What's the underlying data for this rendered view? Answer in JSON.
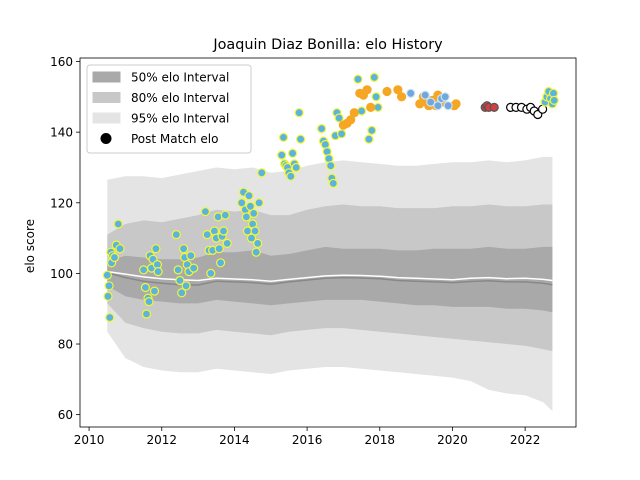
{
  "chart_data": {
    "type": "scatter",
    "title": "Joaquin Diaz Bonilla: elo History",
    "xlabel": "",
    "ylabel": "elo score",
    "xlim": [
      2009.75,
      2023.4
    ],
    "ylim": [
      56.5,
      161
    ],
    "xticks": [
      2010,
      2012,
      2014,
      2016,
      2018,
      2020,
      2022
    ],
    "yticks": [
      60,
      80,
      100,
      120,
      140,
      160
    ],
    "grid": false,
    "legend_position": "top-left",
    "legend": [
      {
        "label": "50% elo Interval",
        "kind": "band50"
      },
      {
        "label": "80% elo Interval",
        "kind": "band80"
      },
      {
        "label": "95% elo Interval",
        "kind": "band95"
      },
      {
        "label": "Post Match elo",
        "kind": "marker"
      }
    ],
    "colors": {
      "band50": "#a9a9a9",
      "band80": "#c8c8c8",
      "band95": "#e4e4e4",
      "mean_line": "#ffffff",
      "median_line": "#888888",
      "stage1_fill": "#5ab4e0",
      "stage1_edge": "#f5f533",
      "stage2_fill": "#f5a623",
      "stage2_edge": "#f5a623",
      "stage3_fill": "#6fa8dc",
      "stage3_edge": "#cfe2f3",
      "stage4_fill": "#d04040",
      "stage4_edge": "#555555",
      "stage5_fill": "#ffffff",
      "stage5_edge": "#000000",
      "stage6_fill": "#5ab4e0",
      "stage6_edge": "#f5f533"
    },
    "bands": {
      "x": [
        2010.5,
        2011.0,
        2011.5,
        2012.0,
        2012.5,
        2013.0,
        2013.5,
        2014.0,
        2014.5,
        2015.0,
        2015.5,
        2016.0,
        2016.5,
        2017.0,
        2017.5,
        2018.0,
        2018.5,
        2019.0,
        2019.5,
        2020.0,
        2020.5,
        2021.0,
        2021.5,
        2022.0,
        2022.5,
        2022.75
      ],
      "mean": [
        100.5,
        99.8,
        99.0,
        98.5,
        98.2,
        98.0,
        98.6,
        98.4,
        98.2,
        97.8,
        98.3,
        98.8,
        99.3,
        99.5,
        99.4,
        99.2,
        98.8,
        98.6,
        98.4,
        98.2,
        98.6,
        98.8,
        98.5,
        98.6,
        98.3,
        98.0
      ],
      "median": [
        100.2,
        98.8,
        97.8,
        97.2,
        96.8,
        96.7,
        97.8,
        97.6,
        97.4,
        96.9,
        97.6,
        98.1,
        98.6,
        98.8,
        98.7,
        98.5,
        98.0,
        97.8,
        97.6,
        97.4,
        97.7,
        97.9,
        97.6,
        97.6,
        97.2,
        96.8
      ],
      "p50_low": [
        96.5,
        93.5,
        92.5,
        92.0,
        91.5,
        91.5,
        92.5,
        92.0,
        91.5,
        91.0,
        91.5,
        92.0,
        92.5,
        92.5,
        92.5,
        92.0,
        91.5,
        91.0,
        91.0,
        90.5,
        90.5,
        90.5,
        90.0,
        90.0,
        89.5,
        89.0
      ],
      "p50_high": [
        103.5,
        105.0,
        104.5,
        104.0,
        104.0,
        104.5,
        106.0,
        106.0,
        106.5,
        105.0,
        105.5,
        106.5,
        107.5,
        107.0,
        107.0,
        107.0,
        106.5,
        106.5,
        107.0,
        107.0,
        107.0,
        107.5,
        107.0,
        107.0,
        107.5,
        107.5
      ],
      "p80_low": [
        91.5,
        86.0,
        84.5,
        83.5,
        83.0,
        83.0,
        84.0,
        83.5,
        83.0,
        82.5,
        83.5,
        84.0,
        84.5,
        84.5,
        84.0,
        83.5,
        83.0,
        82.5,
        82.0,
        81.5,
        81.0,
        80.5,
        80.0,
        79.5,
        78.5,
        78.0
      ],
      "p80_high": [
        111.0,
        114.0,
        115.0,
        114.5,
        115.5,
        116.5,
        118.0,
        117.5,
        118.0,
        116.5,
        116.5,
        118.0,
        119.0,
        119.5,
        119.0,
        119.0,
        118.5,
        118.5,
        118.5,
        119.0,
        119.0,
        119.5,
        119.0,
        119.0,
        119.5,
        119.5
      ],
      "p95_low": [
        83.5,
        76.0,
        73.5,
        72.5,
        72.0,
        72.0,
        73.0,
        72.5,
        72.0,
        71.5,
        72.5,
        73.0,
        73.5,
        73.5,
        73.0,
        72.5,
        72.0,
        71.5,
        71.0,
        70.5,
        69.5,
        67.0,
        66.0,
        65.5,
        63.5,
        61.0
      ],
      "p95_high": [
        126.5,
        127.5,
        127.5,
        127.0,
        128.0,
        129.0,
        130.0,
        129.5,
        130.0,
        128.5,
        129.0,
        130.5,
        131.5,
        132.0,
        131.5,
        131.0,
        130.5,
        130.5,
        131.0,
        131.5,
        131.5,
        132.0,
        131.5,
        132.0,
        133.0,
        133.0
      ]
    },
    "series": [
      {
        "style": "stage1",
        "points": [
          [
            2010.5,
            99.5
          ],
          [
            2010.52,
            93.5
          ],
          [
            2010.55,
            96.5
          ],
          [
            2010.57,
            87.5
          ],
          [
            2010.6,
            106.0
          ],
          [
            2010.62,
            103.0
          ],
          [
            2010.65,
            105.0
          ],
          [
            2010.7,
            104.5
          ],
          [
            2010.75,
            108.0
          ],
          [
            2010.8,
            114.0
          ],
          [
            2010.85,
            107.0
          ],
          [
            2011.5,
            101.0
          ],
          [
            2011.55,
            96.0
          ],
          [
            2011.58,
            88.5
          ],
          [
            2011.62,
            93.0
          ],
          [
            2011.65,
            92.0
          ],
          [
            2011.68,
            105.0
          ],
          [
            2011.72,
            101.5
          ],
          [
            2011.76,
            104.0
          ],
          [
            2011.8,
            95.0
          ],
          [
            2011.84,
            107.0
          ],
          [
            2011.88,
            102.5
          ],
          [
            2011.9,
            100.5
          ],
          [
            2012.4,
            111.0
          ],
          [
            2012.45,
            101.0
          ],
          [
            2012.5,
            98.0
          ],
          [
            2012.55,
            94.5
          ],
          [
            2012.6,
            107.0
          ],
          [
            2012.63,
            104.5
          ],
          [
            2012.67,
            96.5
          ],
          [
            2012.7,
            102.5
          ],
          [
            2012.75,
            100.5
          ],
          [
            2012.8,
            105.0
          ],
          [
            2012.88,
            101.5
          ],
          [
            2013.2,
            117.5
          ],
          [
            2013.25,
            111.0
          ],
          [
            2013.3,
            106.5
          ],
          [
            2013.35,
            100.0
          ],
          [
            2013.4,
            106.5
          ],
          [
            2013.45,
            112.0
          ],
          [
            2013.5,
            110.0
          ],
          [
            2013.55,
            116.0
          ],
          [
            2013.58,
            107.0
          ],
          [
            2013.62,
            103.0
          ],
          [
            2013.66,
            110.5
          ],
          [
            2013.7,
            112.0
          ],
          [
            2013.75,
            116.5
          ],
          [
            2013.8,
            108.5
          ],
          [
            2014.2,
            120.0
          ],
          [
            2014.25,
            123.0
          ],
          [
            2014.3,
            118.0
          ],
          [
            2014.33,
            116.0
          ],
          [
            2014.36,
            112.0
          ],
          [
            2014.4,
            122.0
          ],
          [
            2014.44,
            119.0
          ],
          [
            2014.47,
            110.0
          ],
          [
            2014.5,
            114.0
          ],
          [
            2014.53,
            117.0
          ],
          [
            2014.57,
            112.0
          ],
          [
            2014.6,
            106.0
          ],
          [
            2014.64,
            108.5
          ],
          [
            2014.68,
            120.0
          ],
          [
            2014.75,
            128.5
          ],
          [
            2015.3,
            133.5
          ],
          [
            2015.35,
            138.5
          ],
          [
            2015.38,
            131.0
          ],
          [
            2015.42,
            130.5
          ],
          [
            2015.46,
            130.0
          ],
          [
            2015.5,
            128.5
          ],
          [
            2015.55,
            127.5
          ],
          [
            2015.6,
            134.0
          ],
          [
            2015.65,
            131.0
          ],
          [
            2015.7,
            130.0
          ],
          [
            2015.78,
            145.5
          ],
          [
            2015.82,
            138.0
          ],
          [
            2016.4,
            141.0
          ],
          [
            2016.45,
            137.5
          ],
          [
            2016.5,
            136.5
          ],
          [
            2016.55,
            134.5
          ],
          [
            2016.6,
            132.5
          ],
          [
            2016.65,
            130.5
          ],
          [
            2016.68,
            127.0
          ],
          [
            2016.72,
            125.5
          ],
          [
            2016.78,
            139.0
          ],
          [
            2016.82,
            145.5
          ],
          [
            2016.88,
            144.0
          ],
          [
            2016.95,
            139.5
          ],
          [
            2017.4,
            155.0
          ],
          [
            2017.5,
            146.0
          ],
          [
            2017.7,
            138.0
          ],
          [
            2017.78,
            140.5
          ],
          [
            2017.85,
            155.5
          ],
          [
            2017.9,
            150.0
          ],
          [
            2017.95,
            147.0
          ]
        ]
      },
      {
        "style": "stage2",
        "points": [
          [
            2017.0,
            142.0
          ],
          [
            2017.1,
            142.5
          ],
          [
            2017.2,
            143.5
          ],
          [
            2017.3,
            145.5
          ],
          [
            2017.45,
            151.0
          ],
          [
            2017.55,
            150.5
          ],
          [
            2017.65,
            152.0
          ],
          [
            2017.75,
            147.0
          ],
          [
            2018.2,
            151.5
          ],
          [
            2018.5,
            152.0
          ],
          [
            2018.6,
            150.0
          ],
          [
            2019.1,
            148.0
          ],
          [
            2019.2,
            150.0
          ],
          [
            2019.3,
            148.5
          ],
          [
            2019.35,
            147.5
          ],
          [
            2019.4,
            148.0
          ],
          [
            2019.45,
            149.0
          ],
          [
            2019.55,
            147.5
          ],
          [
            2019.6,
            150.5
          ],
          [
            2019.7,
            148.5
          ],
          [
            2020.05,
            147.5
          ],
          [
            2020.1,
            148.0
          ]
        ]
      },
      {
        "style": "stage3",
        "points": [
          [
            2018.85,
            151.0
          ],
          [
            2019.25,
            150.5
          ],
          [
            2019.4,
            148.5
          ],
          [
            2019.6,
            147.5
          ],
          [
            2019.7,
            149.5
          ],
          [
            2019.8,
            150.0
          ],
          [
            2019.88,
            147.5
          ]
        ]
      },
      {
        "style": "stage4",
        "points": [
          [
            2020.9,
            147.0
          ],
          [
            2020.95,
            147.5
          ],
          [
            2021.0,
            147.0
          ],
          [
            2021.15,
            147.0
          ]
        ]
      },
      {
        "style": "stage5",
        "points": [
          [
            2021.6,
            147.0
          ],
          [
            2021.75,
            147.0
          ],
          [
            2021.9,
            147.0
          ],
          [
            2022.05,
            146.5
          ],
          [
            2022.15,
            147.0
          ],
          [
            2022.25,
            146.0
          ],
          [
            2022.35,
            145.0
          ],
          [
            2022.48,
            146.5
          ]
        ]
      },
      {
        "style": "stage6",
        "points": [
          [
            2022.55,
            148.5
          ],
          [
            2022.6,
            150.0
          ],
          [
            2022.65,
            151.5
          ],
          [
            2022.7,
            149.5
          ],
          [
            2022.75,
            148.0
          ],
          [
            2022.78,
            151.0
          ],
          [
            2022.8,
            149.0
          ]
        ]
      }
    ]
  }
}
